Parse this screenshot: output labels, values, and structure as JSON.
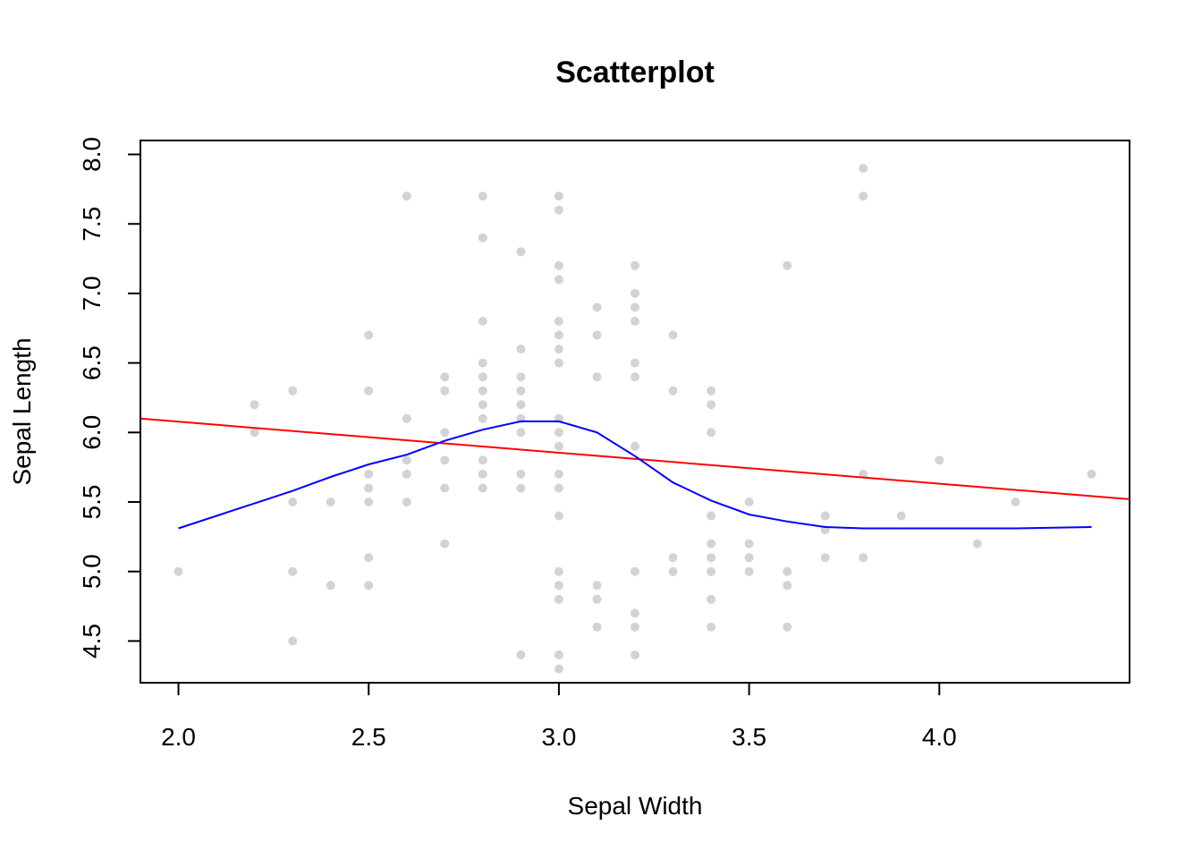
{
  "chart_data": {
    "type": "scatter",
    "title": "Scatterplot",
    "xlabel": "Sepal Width",
    "ylabel": "Sepal Length",
    "xlim": [
      1.9,
      4.5
    ],
    "ylim": [
      4.2,
      8.1
    ],
    "x_ticks": [
      2.0,
      2.5,
      3.0,
      3.5,
      4.0
    ],
    "y_ticks": [
      4.5,
      5.0,
      5.5,
      6.0,
      6.5,
      7.0,
      7.5,
      8.0
    ],
    "x_tick_labels": [
      "2.0",
      "2.5",
      "3.0",
      "3.5",
      "4.0"
    ],
    "y_tick_labels": [
      "4.5",
      "5.0",
      "5.5",
      "6.0",
      "6.5",
      "7.0",
      "7.5",
      "8.0"
    ],
    "grid": false,
    "colors": {
      "points": "#d3d3d3",
      "regression_line": "#ff0000",
      "smooth_line": "#0000ff"
    },
    "points": [
      [
        2.0,
        5.0
      ],
      [
        2.2,
        6.2
      ],
      [
        2.2,
        6.0
      ],
      [
        2.3,
        6.3
      ],
      [
        2.3,
        5.5
      ],
      [
        2.3,
        5.0
      ],
      [
        2.3,
        4.5
      ],
      [
        2.4,
        5.5
      ],
      [
        2.4,
        4.9
      ],
      [
        2.5,
        6.7
      ],
      [
        2.5,
        6.3
      ],
      [
        2.5,
        5.7
      ],
      [
        2.5,
        5.6
      ],
      [
        2.5,
        5.5
      ],
      [
        2.5,
        5.1
      ],
      [
        2.5,
        4.9
      ],
      [
        2.6,
        7.7
      ],
      [
        2.6,
        6.1
      ],
      [
        2.6,
        5.8
      ],
      [
        2.6,
        5.7
      ],
      [
        2.6,
        5.5
      ],
      [
        2.7,
        6.4
      ],
      [
        2.7,
        6.3
      ],
      [
        2.7,
        6.0
      ],
      [
        2.7,
        5.8
      ],
      [
        2.7,
        5.6
      ],
      [
        2.7,
        5.2
      ],
      [
        2.8,
        7.7
      ],
      [
        2.8,
        7.4
      ],
      [
        2.8,
        6.8
      ],
      [
        2.8,
        6.5
      ],
      [
        2.8,
        6.4
      ],
      [
        2.8,
        6.3
      ],
      [
        2.8,
        6.2
      ],
      [
        2.8,
        6.1
      ],
      [
        2.8,
        5.8
      ],
      [
        2.8,
        5.7
      ],
      [
        2.8,
        5.6
      ],
      [
        2.9,
        7.3
      ],
      [
        2.9,
        6.6
      ],
      [
        2.9,
        6.4
      ],
      [
        2.9,
        6.3
      ],
      [
        2.9,
        6.2
      ],
      [
        2.9,
        6.1
      ],
      [
        2.9,
        6.0
      ],
      [
        2.9,
        5.7
      ],
      [
        2.9,
        5.6
      ],
      [
        2.9,
        4.4
      ],
      [
        3.0,
        7.7
      ],
      [
        3.0,
        7.6
      ],
      [
        3.0,
        7.2
      ],
      [
        3.0,
        7.1
      ],
      [
        3.0,
        6.8
      ],
      [
        3.0,
        6.7
      ],
      [
        3.0,
        6.6
      ],
      [
        3.0,
        6.5
      ],
      [
        3.0,
        6.1
      ],
      [
        3.0,
        6.0
      ],
      [
        3.0,
        5.9
      ],
      [
        3.0,
        5.7
      ],
      [
        3.0,
        5.6
      ],
      [
        3.0,
        5.4
      ],
      [
        3.0,
        5.0
      ],
      [
        3.0,
        4.9
      ],
      [
        3.0,
        4.8
      ],
      [
        3.0,
        4.4
      ],
      [
        3.0,
        4.3
      ],
      [
        3.1,
        6.9
      ],
      [
        3.1,
        6.7
      ],
      [
        3.1,
        6.4
      ],
      [
        3.1,
        4.9
      ],
      [
        3.1,
        4.8
      ],
      [
        3.1,
        4.6
      ],
      [
        3.2,
        7.2
      ],
      [
        3.2,
        7.0
      ],
      [
        3.2,
        6.9
      ],
      [
        3.2,
        6.8
      ],
      [
        3.2,
        6.5
      ],
      [
        3.2,
        6.4
      ],
      [
        3.2,
        5.9
      ],
      [
        3.2,
        5.0
      ],
      [
        3.2,
        4.7
      ],
      [
        3.2,
        4.6
      ],
      [
        3.2,
        4.4
      ],
      [
        3.3,
        6.7
      ],
      [
        3.3,
        6.3
      ],
      [
        3.3,
        5.1
      ],
      [
        3.3,
        5.0
      ],
      [
        3.4,
        6.3
      ],
      [
        3.4,
        6.2
      ],
      [
        3.4,
        6.0
      ],
      [
        3.4,
        5.4
      ],
      [
        3.4,
        5.2
      ],
      [
        3.4,
        5.1
      ],
      [
        3.4,
        5.0
      ],
      [
        3.4,
        4.8
      ],
      [
        3.4,
        4.6
      ],
      [
        3.5,
        5.5
      ],
      [
        3.5,
        5.2
      ],
      [
        3.5,
        5.1
      ],
      [
        3.5,
        5.0
      ],
      [
        3.6,
        7.2
      ],
      [
        3.6,
        5.0
      ],
      [
        3.6,
        4.9
      ],
      [
        3.6,
        4.6
      ],
      [
        3.7,
        5.4
      ],
      [
        3.7,
        5.3
      ],
      [
        3.7,
        5.1
      ],
      [
        3.8,
        7.9
      ],
      [
        3.8,
        7.7
      ],
      [
        3.8,
        5.7
      ],
      [
        3.8,
        5.1
      ],
      [
        3.9,
        5.4
      ],
      [
        4.0,
        5.8
      ],
      [
        4.1,
        5.2
      ],
      [
        4.2,
        5.5
      ],
      [
        4.4,
        5.7
      ]
    ],
    "regression_line": {
      "x": [
        1.9,
        4.5
      ],
      "y": [
        6.1,
        5.52
      ]
    },
    "smooth_line": {
      "x": [
        2.0,
        2.1,
        2.2,
        2.3,
        2.4,
        2.5,
        2.6,
        2.7,
        2.8,
        2.9,
        3.0,
        3.1,
        3.2,
        3.3,
        3.4,
        3.5,
        3.6,
        3.7,
        3.8,
        4.0,
        4.2,
        4.4
      ],
      "y": [
        5.31,
        5.4,
        5.49,
        5.58,
        5.68,
        5.77,
        5.84,
        5.94,
        6.02,
        6.08,
        6.08,
        6.0,
        5.83,
        5.64,
        5.51,
        5.41,
        5.36,
        5.32,
        5.31,
        5.31,
        5.31,
        5.32
      ]
    }
  }
}
